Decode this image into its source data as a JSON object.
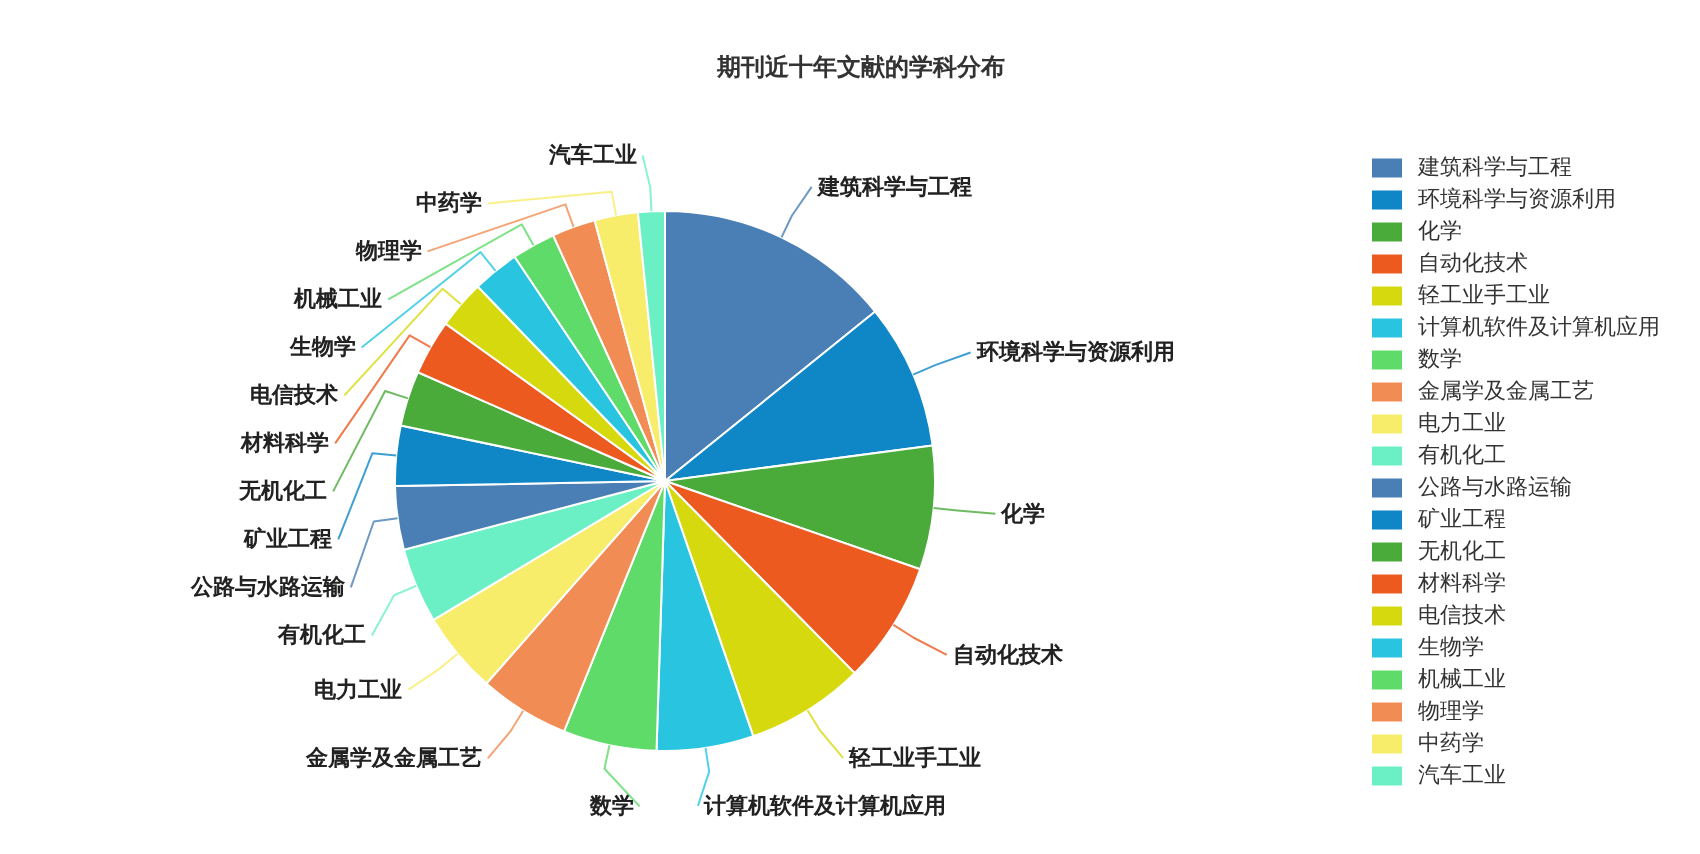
{
  "chart_data": {
    "type": "pie",
    "title": "期刊近十年文献的学科分布",
    "categories": [
      "建筑科学与工程",
      "环境科学与资源利用",
      "化学",
      "自动化技术",
      "轻工业手工业",
      "计算机软件及计算机应用",
      "数学",
      "金属学及金属工艺",
      "电力工业",
      "有机化工",
      "公路与水路运输",
      "矿业工程",
      "无机化工",
      "材料科学",
      "电信技术",
      "生物学",
      "机械工业",
      "物理学",
      "中药学",
      "汽车工业"
    ],
    "values": [
      14.2,
      8.7,
      7.4,
      7.3,
      7.1,
      5.8,
      5.6,
      5.4,
      4.9,
      4.5,
      3.8,
      3.6,
      3.3,
      3.3,
      2.9,
      2.8,
      2.6,
      2.6,
      2.6,
      1.6
    ],
    "colors": [
      "#4a7fb5",
      "#0f87c7",
      "#4aaa3a",
      "#ec5a20",
      "#d6d90e",
      "#29c5e0",
      "#5fdb6a",
      "#f28c55",
      "#f8ed6a",
      "#6bf0c5",
      "#4a7fb5",
      "#0f87c7",
      "#4aaa3a",
      "#ec5a20",
      "#d6d90e",
      "#29c5e0",
      "#5fdb6a",
      "#f28c55",
      "#f8ed6a",
      "#6bf0c5"
    ],
    "legend": "right"
  }
}
